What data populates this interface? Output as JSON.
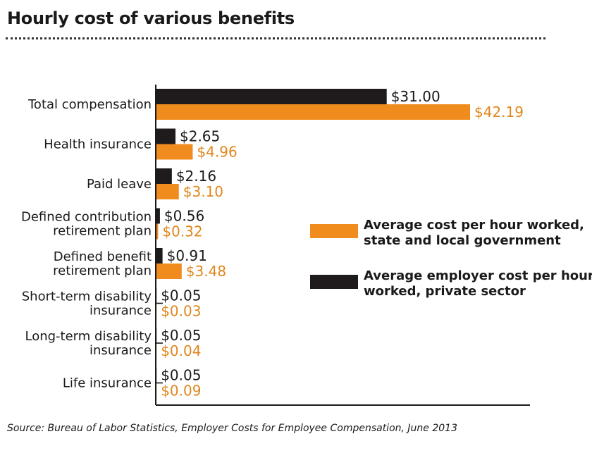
{
  "title": "Hourly cost of various benefits",
  "source": "Source: Bureau of Labor Statistics, Employer Costs for Employee Compensation, June 2013",
  "colors": {
    "private": "#1f1b1c",
    "government": "#f08c1e",
    "government_label": "#e0861c",
    "axis": "#1a1a1a",
    "text": "#1a1a1a"
  },
  "chart_data": {
    "type": "bar",
    "orientation": "horizontal",
    "title": "Hourly cost of various benefits",
    "xlim": [
      0,
      42.19
    ],
    "grid": false,
    "legend_position": "right",
    "categories": [
      [
        "Total compensation"
      ],
      [
        "Health insurance"
      ],
      [
        "Paid leave"
      ],
      [
        "Defined contribution",
        "retirement plan"
      ],
      [
        "Defined benefit",
        "retirement plan"
      ],
      [
        "Short-term disability",
        "insurance"
      ],
      [
        "Long-term disability",
        "insurance"
      ],
      [
        "Life insurance"
      ]
    ],
    "series": [
      {
        "name": "Average employer cost per hour worked, private sector",
        "legend_lines": [
          "Average employer cost per hour",
          "worked, private sector"
        ],
        "color_key": "private",
        "values": [
          31.0,
          2.65,
          2.16,
          0.56,
          0.91,
          0.05,
          0.05,
          0.05
        ],
        "labels": [
          "$31.00",
          "$2.65",
          "$2.16",
          "$0.56",
          "$0.91",
          "$0.05",
          "$0.05",
          "$0.05"
        ]
      },
      {
        "name": "Average cost per hour worked, state and local government",
        "legend_lines": [
          "Average cost per hour worked,",
          "state and local government"
        ],
        "color_key": "government",
        "values": [
          42.19,
          4.96,
          3.1,
          0.32,
          3.48,
          0.03,
          0.04,
          0.09
        ],
        "labels": [
          "$42.19",
          "$4.96",
          "$3.10",
          "$0.32",
          "$3.48",
          "$0.03",
          "$0.04",
          "$0.09"
        ]
      }
    ],
    "legend_order": [
      1,
      0
    ]
  }
}
